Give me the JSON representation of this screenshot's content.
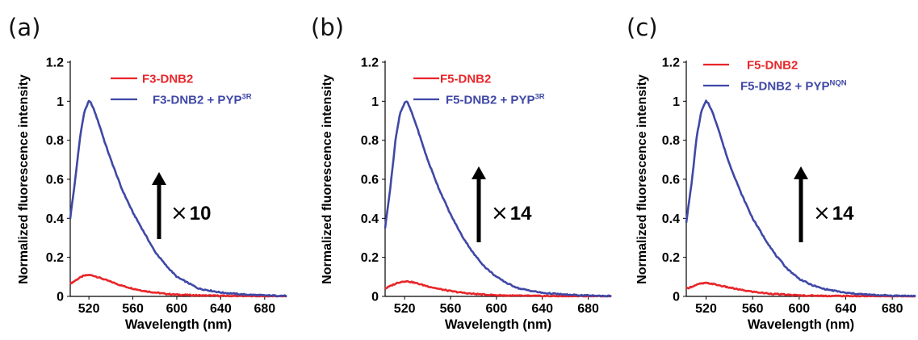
{
  "colors": {
    "series_red": "#e8262a",
    "series_blue": "#3f48a6",
    "axis": "#000000",
    "arrow": "#000000"
  },
  "chart_data": [
    {
      "type": "line",
      "panel_label": "(a)",
      "xlabel": "Wavelength (nm)",
      "ylabel": "Normalized fluorescence intensity",
      "xlim": [
        503,
        700
      ],
      "ylim": [
        0,
        1.2
      ],
      "xticks": [
        "520",
        "560",
        "600",
        "640",
        "680"
      ],
      "yticks": [
        "0",
        "0.2",
        "0.4",
        "0.6",
        "0.8",
        "1",
        "1.2"
      ],
      "annotation": {
        "symbol": "×",
        "factor": "10"
      },
      "series": [
        {
          "name": "F3-DNB2",
          "name_sup": "",
          "color": "#e8262a",
          "x": [
            503,
            510,
            515,
            520,
            525,
            530,
            540,
            550,
            560,
            570,
            580,
            590,
            600,
            620,
            640,
            660,
            680,
            700
          ],
          "y": [
            0.065,
            0.09,
            0.105,
            0.11,
            0.105,
            0.095,
            0.075,
            0.055,
            0.04,
            0.028,
            0.02,
            0.013,
            0.009,
            0.005,
            0.003,
            0.002,
            0.001,
            0.0
          ]
        },
        {
          "name": "F3-DNB2 + PYP",
          "name_sup": "3R",
          "color": "#3f48a6",
          "x": [
            503,
            508,
            512,
            516,
            520,
            522,
            525,
            530,
            535,
            540,
            550,
            560,
            570,
            580,
            590,
            600,
            610,
            620,
            640,
            660,
            680,
            700
          ],
          "y": [
            0.4,
            0.62,
            0.82,
            0.95,
            1.0,
            0.99,
            0.95,
            0.87,
            0.78,
            0.7,
            0.55,
            0.43,
            0.33,
            0.23,
            0.16,
            0.1,
            0.07,
            0.04,
            0.02,
            0.01,
            0.005,
            0.003
          ]
        }
      ]
    },
    {
      "type": "line",
      "panel_label": "(b)",
      "xlabel": "Wavelength (nm)",
      "ylabel": "Normalized fluorescence intensity",
      "xlim": [
        503,
        700
      ],
      "ylim": [
        0,
        1.2
      ],
      "xticks": [
        "520",
        "560",
        "600",
        "640",
        "680"
      ],
      "yticks": [
        "0",
        "0.2",
        "0.4",
        "0.6",
        "0.8",
        "1",
        "1.2"
      ],
      "annotation": {
        "symbol": "×",
        "factor": "14"
      },
      "series": [
        {
          "name": "F5-DNB2",
          "name_sup": "",
          "color": "#e8262a",
          "x": [
            503,
            510,
            515,
            520,
            525,
            530,
            540,
            550,
            560,
            570,
            580,
            590,
            600,
            620,
            640,
            660,
            680,
            700
          ],
          "y": [
            0.04,
            0.06,
            0.072,
            0.078,
            0.075,
            0.068,
            0.052,
            0.038,
            0.027,
            0.019,
            0.013,
            0.009,
            0.006,
            0.003,
            0.002,
            0.001,
            0.001,
            0.0
          ]
        },
        {
          "name": "F5-DNB2 + PYP",
          "name_sup": "3R",
          "color": "#3f48a6",
          "x": [
            503,
            508,
            512,
            516,
            520,
            522,
            525,
            530,
            535,
            540,
            550,
            560,
            570,
            580,
            590,
            600,
            610,
            620,
            640,
            660,
            680,
            700
          ],
          "y": [
            0.35,
            0.58,
            0.8,
            0.94,
            0.99,
            1.0,
            0.96,
            0.88,
            0.79,
            0.7,
            0.55,
            0.42,
            0.31,
            0.22,
            0.15,
            0.1,
            0.065,
            0.04,
            0.018,
            0.009,
            0.004,
            0.002
          ]
        }
      ]
    },
    {
      "type": "line",
      "panel_label": "(c)",
      "xlabel": "Wavelength (nm)",
      "ylabel": "Normalized fluorescence intensity",
      "xlim": [
        503,
        700
      ],
      "ylim": [
        0,
        1.2
      ],
      "xticks": [
        "520",
        "560",
        "600",
        "640",
        "680"
      ],
      "yticks": [
        "0",
        "0.2",
        "0.4",
        "0.6",
        "0.8",
        "1",
        "1.2"
      ],
      "annotation": {
        "symbol": "×",
        "factor": "14"
      },
      "series": [
        {
          "name": "F5-DNB2",
          "name_sup": "",
          "color": "#e8262a",
          "x": [
            503,
            510,
            515,
            520,
            525,
            530,
            540,
            550,
            560,
            570,
            580,
            590,
            600,
            620,
            640,
            660,
            680,
            700
          ],
          "y": [
            0.04,
            0.055,
            0.065,
            0.068,
            0.065,
            0.058,
            0.045,
            0.033,
            0.024,
            0.017,
            0.012,
            0.008,
            0.005,
            0.003,
            0.002,
            0.001,
            0.001,
            0.0
          ]
        },
        {
          "name": "F5-DNB2 + PYP",
          "name_sup": "NQN",
          "color": "#3f48a6",
          "x": [
            503,
            508,
            512,
            516,
            520,
            522,
            525,
            530,
            535,
            540,
            550,
            560,
            570,
            580,
            590,
            600,
            610,
            620,
            640,
            660,
            680,
            700
          ],
          "y": [
            0.38,
            0.6,
            0.82,
            0.95,
            1.0,
            0.99,
            0.95,
            0.87,
            0.77,
            0.68,
            0.53,
            0.4,
            0.3,
            0.21,
            0.14,
            0.09,
            0.06,
            0.04,
            0.018,
            0.008,
            0.004,
            0.002
          ]
        }
      ]
    }
  ]
}
